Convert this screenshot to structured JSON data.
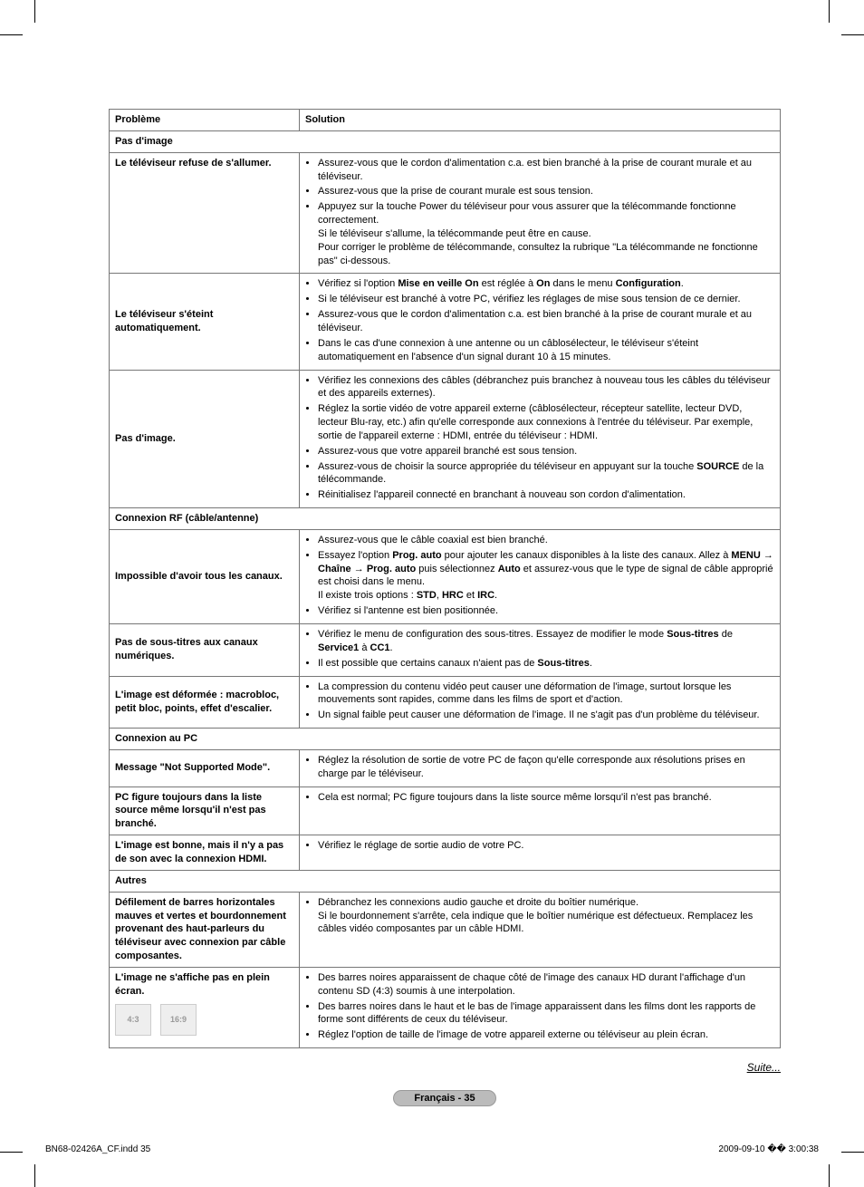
{
  "headers": {
    "problem": "Problème",
    "solution": "Solution"
  },
  "sections": {
    "no_image": "Pas d'image",
    "rf": "Connexion RF (câble/antenne)",
    "pc": "Connexion au PC",
    "other": "Autres"
  },
  "rows": {
    "r1": {
      "p": "Le téléviseur refuse de s'allumer.",
      "s": "<ul class='b'><li>Assurez-vous que le cordon d'alimentation c.a. est bien branché à la prise de courant murale et au téléviseur.</li><li>Assurez-vous que la prise de courant murale est sous tension.</li><li>Appuyez sur la touche Power du téléviseur pour vous assurer que la télécommande fonctionne correctement.<br>Si le téléviseur s'allume, la télécommande peut être en cause.<br>Pour corriger le problème de télécommande, consultez la rubrique \"La télécommande ne fonctionne pas\" ci-dessous.</li></ul>"
    },
    "r2": {
      "p": "Le téléviseur s'éteint automatiquement.",
      "s": "<ul class='b'><li>Vérifiez si l'option <b>Mise en veille On</b> est réglée à <b>On</b> dans le menu <b>Configuration</b>.</li><li>Si le téléviseur est branché à votre PC, vérifiez les réglages de mise sous tension de ce dernier.</li><li>Assurez-vous que le cordon d'alimentation c.a. est bien branché à la prise de courant murale et au téléviseur.</li><li>Dans le cas d'une connexion à une antenne ou un câblosélecteur, le téléviseur s'éteint automatiquement en l'absence d'un signal durant 10 à 15 minutes.</li></ul>"
    },
    "r3": {
      "p": "Pas d'image.",
      "s": "<ul class='b'><li>Vérifiez les connexions des câbles (débranchez puis branchez à nouveau tous les câbles du téléviseur et des appareils externes).</li><li>Réglez la sortie vidéo de votre appareil externe (câblosélecteur, récepteur satellite, lecteur DVD, lecteur Blu-ray, etc.) afin qu'elle corresponde aux connexions à l'entrée du téléviseur. Par exemple, sortie de l'appareil externe : HDMI, entrée du téléviseur : HDMI.</li><li>Assurez-vous que votre appareil branché est sous tension.</li><li>Assurez-vous de choisir la source appropriée du téléviseur en appuyant sur la touche <b>SOURCE</b> de la télécommande.</li><li>Réinitialisez l'appareil connecté en branchant à nouveau son cordon d'alimentation.</li></ul>"
    },
    "r4": {
      "p": "Impossible d'avoir tous les canaux.",
      "s": "<ul class='b'><li>Assurez-vous que le câble coaxial est bien branché.</li><li>Essayez l'option <b>Prog. auto</b> pour ajouter les canaux disponibles à la liste des canaux. Allez à <b>MENU</b> → <b>Chaîne</b> → <b>Prog. auto</b> puis sélectionnez <b>Auto</b> et assurez-vous que le type de signal de câble approprié est choisi dans le menu.<br>Il existe trois options : <b>STD</b>, <b>HRC</b> et <b>IRC</b>.</li><li>Vérifiez si l'antenne est bien positionnée.</li></ul>"
    },
    "r5": {
      "p": "Pas de sous-titres aux canaux numériques.",
      "s": "<ul class='b'><li>Vérifiez le menu de configuration des sous-titres. Essayez de modifier le mode <b>Sous-titres</b> de <b>Service1</b> à <b>CC1</b>.</li><li>Il est possible que certains canaux n'aient pas de <b>Sous-titres</b>.</li></ul>"
    },
    "r6": {
      "p": "L'image est déformée : macrobloc, petit bloc, points, effet d'escalier.",
      "s": "<ul class='b'><li>La compression du contenu vidéo peut causer une déformation de l'image, surtout lorsque les mouvements sont rapides, comme dans les films de sport et d'action.</li><li>Un signal faible peut causer une déformation de l'image. Il ne s'agit pas d'un problème du téléviseur.</li></ul>"
    },
    "r7": {
      "p": "Message \"Not Supported Mode\".",
      "s": "<ul class='b'><li>Réglez la résolution de sortie de votre PC de façon qu'elle corresponde aux résolutions prises en charge par le téléviseur.</li></ul>"
    },
    "r8": {
      "p": "PC figure toujours dans la liste source même lorsqu'il n'est pas branché.",
      "s": "<ul class='b'><li>Cela est normal; PC figure toujours dans la liste source même lorsqu'il n'est pas branché.</li></ul>"
    },
    "r9": {
      "p": "L'image est bonne, mais il n'y a pas de son avec la connexion HDMI.",
      "s": "<ul class='b'><li>Vérifiez le réglage de sortie audio de votre PC.</li></ul>"
    },
    "r10": {
      "p": "Défilement de barres horizontales mauves et vertes et bourdonnement provenant des haut-parleurs du téléviseur avec connexion par câble composantes.",
      "s": "<ul class='b'><li>Débranchez les connexions audio gauche et droite du boîtier numérique.<br>Si le bourdonnement s'arrête, cela indique que le boîtier numérique est défectueux. Remplacez les câbles vidéo composantes par un câble HDMI.</li></ul>"
    },
    "r11": {
      "p": "L'image ne s'affiche pas en plein écran.",
      "s": "<ul class='b'><li>Des barres noires apparaissent de chaque côté de l'image des canaux HD durant l'affichage d'un contenu SD (4:3) soumis à une interpolation.</li><li>Des barres noires dans le haut et le bas de l'image apparaissent dans les films dont les rapports de forme sont différents de ceux du téléviseur.</li><li>Réglez l'option de taille de l'image de votre appareil externe ou téléviseur au plein écran.</li></ul>"
    }
  },
  "suite": "Suite...",
  "badge": "Français - 35",
  "footer": {
    "left": "BN68-02426A_CF.indd   35",
    "right": "2009-09-10   �� 3:00:38"
  }
}
